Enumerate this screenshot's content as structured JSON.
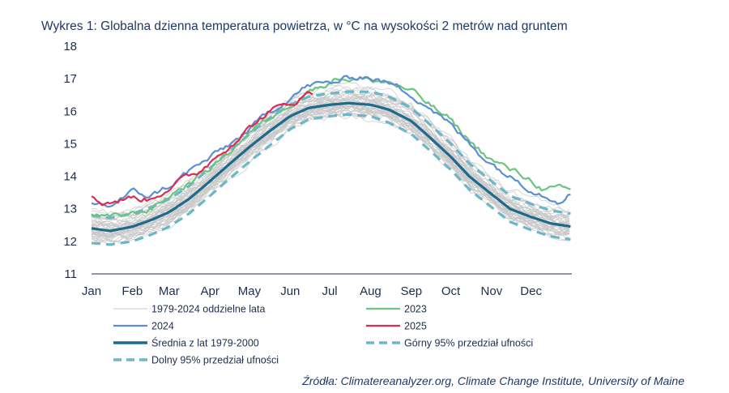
{
  "chart_data": {
    "type": "line",
    "title": "Wykres 1: Globalna dzienna temperatura powietrza, w °C na wysokości 2 metrów nad gruntem",
    "xlabel": "",
    "ylabel": "",
    "ylim": [
      11,
      18
    ],
    "yticks": [
      "11",
      "12",
      "13",
      "14",
      "15",
      "16",
      "17",
      "18"
    ],
    "categories": [
      "Jan",
      "Feb",
      "Mar",
      "Apr",
      "May",
      "Jun",
      "Jul",
      "Aug",
      "Sep",
      "Oct",
      "Nov",
      "Dec"
    ],
    "x_unit": "day of year",
    "xlim": [
      1,
      366
    ],
    "grid": false,
    "legend_position": "bottom",
    "series": [
      {
        "name": "1979-2024 oddzielne lata",
        "color": "#c8c8c8",
        "style": "solid-thin",
        "count": 46
      },
      {
        "name": "2023",
        "color": "#6cc57f",
        "style": "solid",
        "x": [
          1,
          15,
          32,
          46,
          60,
          75,
          91,
          105,
          121,
          135,
          152,
          166,
          175,
          182,
          190,
          200,
          213,
          227,
          244,
          258,
          274,
          288,
          305,
          319,
          335,
          345,
          355,
          366
        ],
        "values": [
          12.85,
          12.7,
          12.85,
          13.0,
          13.4,
          13.8,
          14.25,
          14.75,
          15.35,
          15.75,
          16.25,
          16.65,
          16.75,
          16.95,
          17.05,
          17.0,
          16.95,
          16.9,
          16.6,
          16.2,
          15.7,
          15.1,
          14.5,
          14.2,
          13.9,
          13.6,
          13.6,
          13.5
        ]
      },
      {
        "name": "2024",
        "color": "#5b8fd1",
        "style": "solid",
        "x": [
          1,
          15,
          32,
          46,
          60,
          75,
          91,
          105,
          121,
          135,
          152,
          166,
          182,
          196,
          206,
          213,
          227,
          244,
          258,
          274,
          288,
          305,
          319,
          335,
          345,
          355,
          366
        ],
        "values": [
          13.2,
          13.1,
          13.5,
          13.4,
          13.7,
          14.15,
          14.55,
          14.95,
          15.4,
          15.95,
          16.45,
          16.8,
          16.85,
          17.0,
          17.1,
          17.05,
          16.85,
          16.55,
          16.15,
          15.55,
          15.0,
          14.4,
          14.0,
          13.65,
          13.45,
          13.3,
          13.5
        ]
      },
      {
        "name": "2025",
        "color": "#dd2c4f",
        "style": "solid",
        "x": [
          1,
          10,
          20,
          32,
          45,
          55,
          65,
          80,
          91,
          105,
          121,
          135,
          152,
          166,
          170
        ],
        "values": [
          13.4,
          13.2,
          13.25,
          13.35,
          13.3,
          13.55,
          13.8,
          14.05,
          14.45,
          14.95,
          15.5,
          15.95,
          16.25,
          16.55,
          16.55
        ]
      },
      {
        "name": "Średnia z lat 1979-2000",
        "color": "#1d6a8c",
        "style": "solid-thick",
        "x": [
          1,
          15,
          32,
          46,
          60,
          75,
          91,
          105,
          121,
          135,
          152,
          166,
          182,
          196,
          213,
          227,
          244,
          258,
          274,
          288,
          305,
          319,
          335,
          350,
          366
        ],
        "values": [
          12.4,
          12.32,
          12.45,
          12.65,
          12.9,
          13.3,
          13.85,
          14.35,
          14.9,
          15.35,
          15.85,
          16.1,
          16.2,
          16.25,
          16.2,
          16.05,
          15.7,
          15.2,
          14.6,
          14.0,
          13.45,
          13.0,
          12.75,
          12.55,
          12.45
        ]
      },
      {
        "name": "Górny 95% przedział ufności",
        "color": "#6bb6c8",
        "style": "dashed",
        "x": [
          1,
          15,
          32,
          46,
          60,
          75,
          91,
          105,
          121,
          135,
          152,
          166,
          182,
          196,
          213,
          227,
          244,
          258,
          274,
          288,
          305,
          319,
          335,
          350,
          366
        ],
        "values": [
          12.8,
          12.72,
          12.85,
          13.05,
          13.3,
          13.7,
          14.25,
          14.75,
          15.3,
          15.75,
          16.2,
          16.45,
          16.55,
          16.6,
          16.6,
          16.45,
          16.1,
          15.6,
          15.0,
          14.4,
          13.85,
          13.4,
          13.15,
          12.95,
          12.85
        ]
      },
      {
        "name": "Dolny 95% przedział ufności",
        "color": "#6bb6c8",
        "style": "dashed",
        "x": [
          1,
          15,
          32,
          46,
          60,
          75,
          91,
          105,
          121,
          135,
          152,
          166,
          182,
          196,
          213,
          227,
          244,
          258,
          274,
          288,
          305,
          319,
          335,
          350,
          366
        ],
        "values": [
          11.95,
          11.9,
          12.0,
          12.2,
          12.45,
          12.85,
          13.4,
          13.9,
          14.45,
          14.9,
          15.45,
          15.75,
          15.85,
          15.9,
          15.85,
          15.65,
          15.3,
          14.8,
          14.2,
          13.6,
          13.05,
          12.6,
          12.35,
          12.15,
          12.05
        ]
      }
    ],
    "source": "Źródła: Climatereanalyzer.org, Climate Change Institute, University of Maine"
  }
}
